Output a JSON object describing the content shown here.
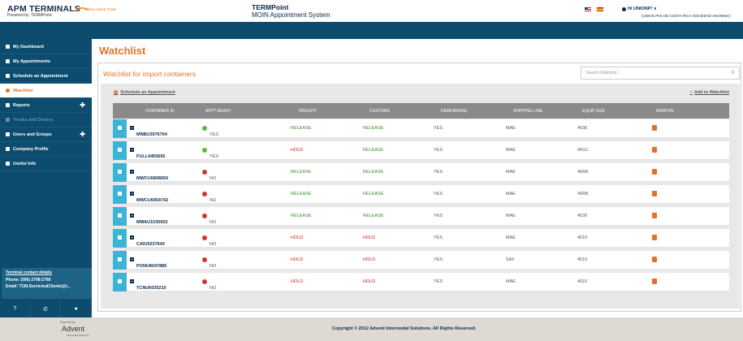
{
  "header": {
    "logo_title": "APM TERMINALS",
    "logo_tagline": "Lifting Global Trade",
    "powered_by": "Powered by: TERMPoint",
    "app_name": "TERMPoint",
    "app_subtitle": "MOIN Appointment System",
    "user_greeting": "Hi UNIONP! ∨",
    "user_org": "(UNION PAK DE COSTA RICA SOCIEDAD ANONIMA)"
  },
  "sidebar": {
    "items": [
      {
        "label": "My Dashboard"
      },
      {
        "label": "My Appointments"
      },
      {
        "label": "Schedule an Appointment"
      },
      {
        "label": "Watchlist"
      },
      {
        "label": "Reports"
      },
      {
        "label": "Trucks and Drivers"
      },
      {
        "label": "Users and Groups"
      },
      {
        "label": "Company Profile"
      },
      {
        "label": "Useful Info"
      }
    ],
    "contact_title": "Terminal contact details",
    "phone": "Phone: (506) 2798-2768",
    "email": "Email: TCM.ServicioalCliente@t..."
  },
  "main": {
    "page_title": "Watchlist",
    "panel_title": "Watchlist for import containers",
    "search_placeholder": "Search Watchlist...",
    "schedule_link": "Schedule an Appointment",
    "add_link": "Add to Watchlist",
    "columns": [
      "CONTAINER ID",
      "APPT READY",
      "FREIGHT",
      "CUSTOMS",
      "DEMURRAGE",
      "SHIPPING LINE",
      "EQUIP SIZE",
      "REMOVE"
    ],
    "rows": [
      {
        "id": "MNBU3976704",
        "appt": "YES",
        "freight": "RELEASE",
        "customs": "RELEASE",
        "demurrage": "YES",
        "line": "MAE",
        "size": "4530"
      },
      {
        "id": "FULL4455665",
        "appt": "YES",
        "freight": "HOLD",
        "customs": "RELEASE",
        "demurrage": "YES",
        "line": "MAE",
        "size": "45G1"
      },
      {
        "id": "MWCU6808650",
        "appt": "NO",
        "freight": "RELEASE",
        "customs": "RELEASE",
        "demurrage": "YES",
        "line": "MAE",
        "size": "45R8"
      },
      {
        "id": "MWCU6954742",
        "appt": "NO",
        "freight": "RELEASE",
        "customs": "RELEASE",
        "demurrage": "YES",
        "line": "MAE",
        "size": "45R8"
      },
      {
        "id": "MMAU1035602",
        "appt": "NO",
        "freight": "RELEASE",
        "customs": "RELEASE",
        "demurrage": "YES",
        "line": "MAE",
        "size": "4530"
      },
      {
        "id": "CAIU5337643",
        "appt": "NO",
        "freight": "HOLD",
        "customs": "HOLD",
        "demurrage": "YES",
        "line": "MAE",
        "size": "4510"
      },
      {
        "id": "PONU8047885",
        "appt": "NO",
        "freight": "HOLD",
        "customs": "HOLD",
        "demurrage": "YES",
        "line": "SAF",
        "size": "4510"
      },
      {
        "id": "TCNU6035210",
        "appt": "NO",
        "freight": "HOLD",
        "customs": "HOLD",
        "demurrage": "YES",
        "line": "MAE",
        "size": "4510"
      }
    ]
  },
  "footer": {
    "copyright": "Copyright © 2012 Advent Intermodal Solutions. All Rights Reserved.",
    "powered_label": "Powered by",
    "brand": "Advent",
    "brand_sub": "Intermodal Solutions"
  }
}
